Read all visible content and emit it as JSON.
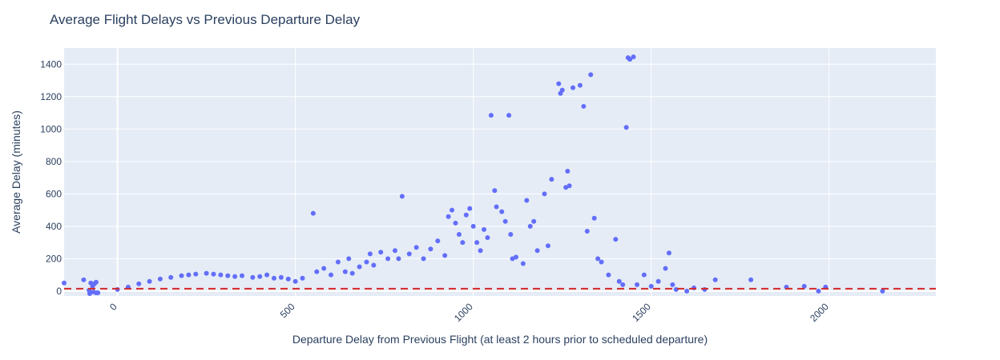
{
  "chart_data": {
    "type": "scatter",
    "title": "Average Flight Delays vs Previous Departure Delay",
    "xlabel": "Departure Delay from Previous Flight (at least 2 hours prior to scheduled departure)",
    "ylabel": "Average Delay (minutes)",
    "xlim": [
      -150,
      2300
    ],
    "ylim": [
      -30,
      1500
    ],
    "x_ticks": [
      "0",
      "500",
      "1000",
      "1500",
      "2000"
    ],
    "y_ticks": [
      "0",
      "200",
      "400",
      "600",
      "800",
      "1000",
      "1200",
      "1400"
    ],
    "x_tick_values": [
      0,
      500,
      1000,
      1500,
      2000
    ],
    "y_tick_values": [
      0,
      200,
      400,
      600,
      800,
      1000,
      1200,
      1400
    ],
    "grid": true,
    "legend": "none",
    "reference_line": {
      "y": 15,
      "style": "dashed",
      "color": "#d62728"
    },
    "colors": {
      "marker": "#636efa",
      "plot_bg": "#e5ecf6",
      "grid": "#ffffff",
      "text": "#2a3f5f"
    },
    "series": [
      {
        "values_x": [
          -150,
          -95,
          -80,
          -75,
          -70,
          -65,
          -60,
          -55,
          -78,
          -68,
          -60,
          0,
          30,
          60,
          90,
          120,
          150,
          180,
          200,
          220,
          250,
          270,
          290,
          310,
          330,
          350,
          380,
          400,
          420,
          440,
          460,
          480,
          500,
          520,
          550,
          560,
          580,
          600,
          620,
          640,
          650,
          660,
          680,
          700,
          710,
          720,
          740,
          760,
          780,
          790,
          800,
          820,
          840,
          860,
          880,
          900,
          920,
          930,
          940,
          950,
          960,
          970,
          980,
          990,
          1000,
          1010,
          1020,
          1030,
          1040,
          1050,
          1060,
          1065,
          1080,
          1090,
          1100,
          1105,
          1110,
          1120,
          1140,
          1150,
          1160,
          1170,
          1180,
          1200,
          1210,
          1220,
          1240,
          1245,
          1250,
          1260,
          1265,
          1270,
          1280,
          1300,
          1310,
          1320,
          1330,
          1340,
          1350,
          1360,
          1380,
          1400,
          1410,
          1420,
          1430,
          1435,
          1440,
          1450,
          1460,
          1480,
          1500,
          1520,
          1540,
          1550,
          1560,
          1570,
          1600,
          1620,
          1650,
          1680,
          1780,
          1880,
          1930,
          1970,
          1990,
          2150
        ],
        "values_y": [
          50,
          70,
          5,
          50,
          30,
          45,
          55,
          -10,
          -15,
          -5,
          -10,
          10,
          25,
          45,
          60,
          75,
          85,
          95,
          100,
          105,
          110,
          105,
          100,
          95,
          90,
          95,
          85,
          90,
          100,
          80,
          85,
          75,
          60,
          80,
          480,
          120,
          140,
          100,
          180,
          120,
          200,
          110,
          150,
          180,
          230,
          160,
          240,
          200,
          250,
          200,
          585,
          230,
          270,
          200,
          260,
          310,
          220,
          460,
          500,
          420,
          350,
          300,
          470,
          510,
          400,
          300,
          250,
          380,
          330,
          1085,
          620,
          520,
          490,
          430,
          1085,
          350,
          200,
          210,
          170,
          560,
          400,
          430,
          250,
          600,
          280,
          690,
          1280,
          1220,
          1240,
          640,
          740,
          650,
          1255,
          1270,
          1140,
          370,
          1335,
          450,
          200,
          180,
          100,
          320,
          60,
          40,
          1010,
          1440,
          1430,
          1445,
          40,
          100,
          30,
          60,
          140,
          235,
          40,
          10,
          0,
          20,
          10,
          70,
          70,
          25,
          30,
          0,
          25,
          0
        ]
      }
    ]
  }
}
